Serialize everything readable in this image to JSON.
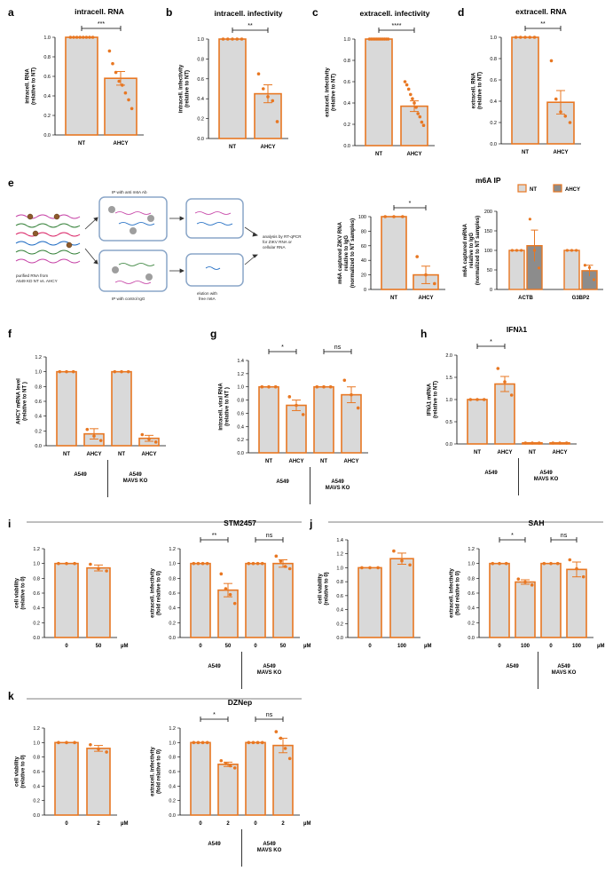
{
  "colors": {
    "orange": "#e87722",
    "barFill": "#d9d9d9",
    "darkFill": "#8c8c8c"
  },
  "schematic": {
    "label_input": "purified RNA from\nA549 KD NT vs. AHCY",
    "label_ip": "IP with anti m6A Ab",
    "label_igg": "IP with control IgG",
    "label_elution": "elution with\nfree m6A",
    "label_analysis": "analysis by RT-qPCR\nfor ZIKV RNA or\ncellular RNA"
  },
  "chart_data": [
    {
      "id": "a",
      "type": "bar",
      "title": "intracell. RNA",
      "ylabel": "intracell. RNA\n(relative to NT)",
      "ylim": [
        0,
        1.0
      ],
      "ticks": [
        0,
        0.2,
        0.4,
        0.6,
        0.8,
        1.0
      ],
      "tickLabels": [
        "0.0",
        "0.2",
        "0.4",
        "0.6",
        "0.8",
        "1.0"
      ],
      "categories": [
        "NT",
        "AHCY"
      ],
      "values": [
        1.0,
        0.58
      ],
      "errors": [
        0,
        0.07
      ],
      "points": [
        [
          1,
          1,
          1,
          1,
          1,
          1,
          1,
          1
        ],
        [
          0.86,
          0.73,
          0.64,
          0.55,
          0.51,
          0.43,
          0.36,
          0.27
        ]
      ],
      "sig": [
        {
          "from": 0,
          "to": 1,
          "label": "***"
        }
      ]
    },
    {
      "id": "b",
      "type": "bar",
      "title": "intracell. infectivity",
      "ylabel": "intracell. infectivity\n(relative to NT)",
      "ylim": [
        0,
        1.0
      ],
      "ticks": [
        0,
        0.2,
        0.4,
        0.6,
        0.8,
        1.0
      ],
      "tickLabels": [
        "0.0",
        "0.2",
        "0.4",
        "0.6",
        "0.8",
        "1.0"
      ],
      "categories": [
        "NT",
        "AHCY"
      ],
      "values": [
        1.0,
        0.45
      ],
      "errors": [
        0,
        0.09
      ],
      "points": [
        [
          1,
          1,
          1,
          1,
          1
        ],
        [
          0.65,
          0.5,
          0.42,
          0.38,
          0.17
        ]
      ],
      "sig": [
        {
          "from": 0,
          "to": 1,
          "label": "**"
        }
      ]
    },
    {
      "id": "c",
      "type": "bar",
      "title": "extracell. infectivity",
      "ylabel": "extracell. infectivity\n(relative to NT)",
      "ylim": [
        0,
        1.0
      ],
      "ticks": [
        0,
        0.2,
        0.4,
        0.6,
        0.8,
        1.0
      ],
      "tickLabels": [
        "0.0",
        "0.2",
        "0.4",
        "0.6",
        "0.8",
        "1.0"
      ],
      "categories": [
        "NT",
        "AHCY"
      ],
      "values": [
        1.0,
        0.37
      ],
      "errors": [
        0,
        0.05
      ],
      "points": [
        [
          1,
          1,
          1,
          1,
          1,
          1,
          1,
          1,
          1,
          1,
          1
        ],
        [
          0.6,
          0.57,
          0.53,
          0.48,
          0.44,
          0.4,
          0.36,
          0.3,
          0.27,
          0.22,
          0.19
        ]
      ],
      "sig": [
        {
          "from": 0,
          "to": 1,
          "label": "****"
        }
      ]
    },
    {
      "id": "d",
      "type": "bar",
      "title": "extracell. RNA",
      "ylabel": "extracell. RNA\n(relative to NT)",
      "ylim": [
        0,
        1.0
      ],
      "ticks": [
        0,
        0.2,
        0.4,
        0.6,
        0.8,
        1.0
      ],
      "tickLabels": [
        "0.0",
        "0.2",
        "0.4",
        "0.6",
        "0.8",
        "1.0"
      ],
      "categories": [
        "NT",
        "AHCY"
      ],
      "values": [
        1.0,
        0.39
      ],
      "errors": [
        0,
        0.11
      ],
      "points": [
        [
          1,
          1,
          1,
          1,
          1
        ],
        [
          0.78,
          0.42,
          0.3,
          0.26,
          0.2
        ]
      ],
      "sig": [
        {
          "from": 0,
          "to": 1,
          "label": "**"
        }
      ]
    },
    {
      "id": "e_left",
      "type": "bar",
      "title": "",
      "ylabel": "m6A captured ZIKV RNA\nrelative to IgG\n(normalized to NT samples)",
      "ylim": [
        0,
        100
      ],
      "ticks": [
        0,
        20,
        40,
        60,
        80,
        100
      ],
      "tickLabels": [
        "0",
        "20",
        "40",
        "60",
        "80",
        "100"
      ],
      "categories": [
        "NT",
        "AHCY"
      ],
      "values": [
        100,
        20
      ],
      "errors": [
        0,
        12
      ],
      "points": [
        [
          100,
          100,
          100
        ],
        [
          45,
          20,
          8
        ]
      ],
      "sig": [
        {
          "from": 0,
          "to": 1,
          "label": "*"
        }
      ]
    },
    {
      "id": "e_right",
      "type": "grouped_bar",
      "title": "m6A IP",
      "ylabel": "m6A captured mRNA\nrelative to IgG\n(normalized to NT samples)",
      "ylim": [
        0,
        200
      ],
      "ticks": [
        0,
        50,
        100,
        150,
        200
      ],
      "tickLabels": [
        "0",
        "50",
        "100",
        "150",
        "200"
      ],
      "categories": [
        "ACTB",
        "G3BP2"
      ],
      "series": [
        {
          "name": "NT",
          "values": [
            100,
            100
          ],
          "errors": [
            0,
            0
          ],
          "points": [
            [
              100,
              100,
              100
            ],
            [
              100,
              100,
              100
            ]
          ]
        },
        {
          "name": "AHCY",
          "values": [
            112,
            48
          ],
          "errors": [
            40,
            14
          ],
          "points": [
            [
              180,
              100,
              55
            ],
            [
              62,
              56,
              25
            ]
          ]
        }
      ],
      "legend": [
        "NT",
        "AHCY"
      ]
    },
    {
      "id": "f",
      "type": "bar",
      "title": "",
      "ylabel": "AHCY mRNA level\n(relative to NT )",
      "ylim": [
        0,
        1.2
      ],
      "ticks": [
        0,
        0.2,
        0.4,
        0.6,
        0.8,
        1.0,
        1.2
      ],
      "tickLabels": [
        "0.0",
        "0.2",
        "0.4",
        "0.6",
        "0.8",
        "1.0",
        "1.2"
      ],
      "categories": [
        "NT",
        "AHCY",
        "NT",
        "AHCY"
      ],
      "values": [
        1.0,
        0.16,
        1.0,
        0.1
      ],
      "errors": [
        0,
        0.07,
        0,
        0.04
      ],
      "points": [
        [
          1,
          1,
          1
        ],
        [
          0.22,
          0.13,
          0.07
        ],
        [
          1,
          1,
          1
        ],
        [
          0.15,
          0.09,
          0.05
        ]
      ],
      "groups": [
        {
          "label": "A549",
          "start": 0,
          "end": 1
        },
        {
          "label": "A549\nMAVS KO",
          "start": 2,
          "end": 3
        }
      ],
      "sig": []
    },
    {
      "id": "g",
      "type": "bar",
      "title": "",
      "ylabel": "intracell. viral RNA\n(relative to NT )",
      "ylim": [
        0,
        1.4
      ],
      "ticks": [
        0,
        0.2,
        0.4,
        0.6,
        0.8,
        1.0,
        1.2,
        1.4
      ],
      "tickLabels": [
        "0.0",
        "0.2",
        "0.4",
        "0.6",
        "0.8",
        "1.0",
        "1.2",
        "1.4"
      ],
      "categories": [
        "NT",
        "AHCY",
        "NT",
        "AHCY"
      ],
      "values": [
        1.0,
        0.72,
        1.0,
        0.88
      ],
      "errors": [
        0,
        0.08,
        0,
        0.12
      ],
      "points": [
        [
          1,
          1,
          1
        ],
        [
          0.85,
          0.72,
          0.58
        ],
        [
          1,
          1,
          1
        ],
        [
          1.1,
          0.88,
          0.68
        ]
      ],
      "groups": [
        {
          "label": "A549",
          "start": 0,
          "end": 1
        },
        {
          "label": "A549\nMAVS KO",
          "start": 2,
          "end": 3
        }
      ],
      "sig": [
        {
          "from": 0,
          "to": 1,
          "label": "*"
        },
        {
          "from": 2,
          "to": 3,
          "label": "ns"
        }
      ]
    },
    {
      "id": "h",
      "type": "bar",
      "title": "IFNλ1",
      "ylabel": "IFNλ1 mRNA\n(relative to NT)",
      "ylim": [
        0,
        2.0
      ],
      "ticks": [
        0,
        0.5,
        1.0,
        1.5,
        2.0
      ],
      "tickLabels": [
        "0.0",
        "0.5",
        "1.0",
        "1.5",
        "2.0"
      ],
      "categories": [
        "NT",
        "AHCY",
        "NT",
        "AHCY"
      ],
      "values": [
        1.0,
        1.35,
        0.02,
        0.02
      ],
      "errors": [
        0,
        0.17,
        0,
        0
      ],
      "points": [
        [
          1,
          1,
          1
        ],
        [
          1.7,
          1.4,
          1.1
        ],
        [
          0.02,
          0.02,
          0.02
        ],
        [
          0.02,
          0.02,
          0.02
        ]
      ],
      "groups": [
        {
          "label": "A549",
          "start": 0,
          "end": 1
        },
        {
          "label": "A549\nMAVS KO",
          "start": 2,
          "end": 3
        }
      ],
      "sig": [
        {
          "from": 0,
          "to": 1,
          "label": "*"
        }
      ]
    },
    {
      "id": "i_left",
      "type": "bar",
      "title": "",
      "ylabel": "cell viability\n(relative to 0)",
      "ylim": [
        0,
        1.2
      ],
      "ticks": [
        0,
        0.2,
        0.4,
        0.6,
        0.8,
        1.0,
        1.2
      ],
      "tickLabels": [
        "0.0",
        "0.2",
        "0.4",
        "0.6",
        "0.8",
        "1.0",
        "1.2"
      ],
      "categories": [
        "0",
        "50"
      ],
      "unit": "µM",
      "values": [
        1.0,
        0.94
      ],
      "errors": [
        0,
        0.04
      ],
      "points": [
        [
          1,
          1,
          1
        ],
        [
          0.99,
          0.93,
          0.9
        ]
      ],
      "sig": []
    },
    {
      "id": "i_right",
      "type": "bar",
      "title": "STM2457",
      "ylabel": "extracell. infectivity\n(fold relative to 0)",
      "ylim": [
        0,
        1.2
      ],
      "ticks": [
        0,
        0.2,
        0.4,
        0.6,
        0.8,
        1.0,
        1.2
      ],
      "tickLabels": [
        "0.0",
        "0.2",
        "0.4",
        "0.6",
        "0.8",
        "1.0",
        "1.2"
      ],
      "categories": [
        "0",
        "50",
        "0",
        "50"
      ],
      "unit": "µM",
      "values": [
        1.0,
        0.64,
        1.0,
        1.0
      ],
      "errors": [
        0,
        0.09,
        0,
        0.05
      ],
      "points": [
        [
          1,
          1,
          1,
          1
        ],
        [
          0.86,
          0.66,
          0.58,
          0.46
        ],
        [
          1,
          1,
          1,
          1
        ],
        [
          1.1,
          1.03,
          0.96,
          0.93
        ]
      ],
      "groups": [
        {
          "label": "A549",
          "start": 0,
          "end": 1
        },
        {
          "label": "A549\nMAVS KO",
          "start": 2,
          "end": 3
        }
      ],
      "sig": [
        {
          "from": 0,
          "to": 1,
          "label": "**"
        },
        {
          "from": 2,
          "to": 3,
          "label": "ns"
        }
      ]
    },
    {
      "id": "j_left",
      "type": "bar",
      "title": "",
      "ylabel": "cell viability\n(relative to 0)",
      "ylim": [
        0,
        1.4
      ],
      "ticks": [
        0,
        0.2,
        0.4,
        0.6,
        0.8,
        1.0,
        1.2,
        1.4
      ],
      "tickLabels": [
        "0.0",
        "0.2",
        "0.4",
        "0.6",
        "0.8",
        "1.0",
        "1.2",
        "1.4"
      ],
      "categories": [
        "0",
        "100"
      ],
      "unit": "µM",
      "values": [
        1.0,
        1.13
      ],
      "errors": [
        0,
        0.08
      ],
      "points": [
        [
          1,
          1,
          1
        ],
        [
          1.24,
          1.1,
          1.04
        ]
      ],
      "sig": []
    },
    {
      "id": "j_right",
      "type": "bar",
      "title": "SAH",
      "ylabel": "extracell. infectivity\n(fold relative to 0)",
      "ylim": [
        0,
        1.2
      ],
      "ticks": [
        0,
        0.2,
        0.4,
        0.6,
        0.8,
        1.0,
        1.2
      ],
      "tickLabels": [
        "0.0",
        "0.2",
        "0.4",
        "0.6",
        "0.8",
        "1.0",
        "1.2"
      ],
      "categories": [
        "0",
        "100",
        "0",
        "100"
      ],
      "unit": "µM",
      "values": [
        1.0,
        0.75,
        1.0,
        0.92
      ],
      "errors": [
        0,
        0.03,
        0,
        0.1
      ],
      "points": [
        [
          1,
          1,
          1
        ],
        [
          0.79,
          0.75,
          0.71
        ],
        [
          1,
          1,
          1
        ],
        [
          1.05,
          0.93,
          0.82
        ]
      ],
      "groups": [
        {
          "label": "A549",
          "start": 0,
          "end": 1
        },
        {
          "label": "A549\nMAVS KO",
          "start": 2,
          "end": 3
        }
      ],
      "sig": [
        {
          "from": 0,
          "to": 1,
          "label": "*"
        },
        {
          "from": 2,
          "to": 3,
          "label": "ns"
        }
      ]
    },
    {
      "id": "k_left",
      "type": "bar",
      "title": "",
      "ylabel": "cell viability\n(relative to 0)",
      "ylim": [
        0,
        1.2
      ],
      "ticks": [
        0,
        0.2,
        0.4,
        0.6,
        0.8,
        1.0,
        1.2
      ],
      "tickLabels": [
        "0.0",
        "0.2",
        "0.4",
        "0.6",
        "0.8",
        "1.0",
        "1.2"
      ],
      "categories": [
        "0",
        "2"
      ],
      "unit": "µM",
      "values": [
        1.0,
        0.92
      ],
      "errors": [
        0,
        0.04
      ],
      "points": [
        [
          1,
          1,
          1
        ],
        [
          0.97,
          0.91,
          0.87
        ]
      ],
      "sig": []
    },
    {
      "id": "k_right",
      "type": "bar",
      "title": "DZNep",
      "ylabel": "extracell. infectivity\n(fold relative to 0)",
      "ylim": [
        0,
        1.2
      ],
      "ticks": [
        0,
        0.2,
        0.4,
        0.6,
        0.8,
        1.0,
        1.2
      ],
      "tickLabels": [
        "0.0",
        "0.2",
        "0.4",
        "0.6",
        "0.8",
        "1.0",
        "1.2"
      ],
      "categories": [
        "0",
        "2",
        "0",
        "2"
      ],
      "unit": "µM",
      "values": [
        1.0,
        0.7,
        1.0,
        0.96
      ],
      "errors": [
        0,
        0.03,
        0,
        0.1
      ],
      "points": [
        [
          1,
          1,
          1,
          1
        ],
        [
          0.75,
          0.71,
          0.68,
          0.65
        ],
        [
          1,
          1,
          1,
          1
        ],
        [
          1.15,
          1.06,
          0.92,
          0.78
        ]
      ],
      "groups": [
        {
          "label": "A549",
          "start": 0,
          "end": 1
        },
        {
          "label": "A549\nMAVS KO",
          "start": 2,
          "end": 3
        }
      ],
      "sig": [
        {
          "from": 0,
          "to": 1,
          "label": "*"
        },
        {
          "from": 2,
          "to": 3,
          "label": "ns"
        }
      ]
    }
  ],
  "panel_labels": [
    "a",
    "b",
    "c",
    "d",
    "e",
    "f",
    "g",
    "h",
    "i",
    "j",
    "k"
  ]
}
